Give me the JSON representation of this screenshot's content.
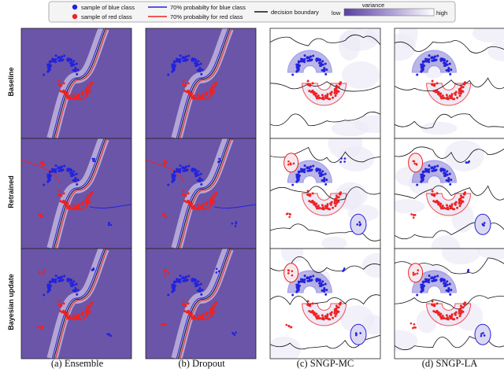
{
  "legend": {
    "blue_marker": "sample of blue class",
    "red_marker": "sample of red class",
    "blue_line": "70% probabilty for blue class",
    "red_line": "70% probabilty for red class",
    "boundary": "decision boundary",
    "variance_title": "variance",
    "variance_low": "low",
    "variance_high": "high"
  },
  "rows": [
    "Baseline",
    "Retrained",
    "Bayesian update"
  ],
  "columns": [
    "(a) Ensemble",
    "(b) Dropout",
    "(c) SNGP-MC",
    "(d) SNGP-LA"
  ],
  "colors": {
    "purple_background": "#6a55a8",
    "blue_class": "#2222dd",
    "red_class": "#ee2222",
    "boundary": "#111111"
  },
  "chart_data": {
    "type": "scatter",
    "title": "",
    "xlabel": "",
    "ylabel": "",
    "grid": false,
    "legend_placement": "top",
    "series": [
      {
        "name": "sample of blue class",
        "shape": "upper moon"
      },
      {
        "name": "sample of red class",
        "shape": "lower moon"
      }
    ],
    "panels": [
      {
        "row": "Baseline",
        "column": "(a) Ensemble",
        "background": "purple",
        "clusters": false
      },
      {
        "row": "Baseline",
        "column": "(b) Dropout",
        "background": "purple",
        "clusters": false
      },
      {
        "row": "Baseline",
        "column": "(c) SNGP-MC",
        "background": "white",
        "clusters": false
      },
      {
        "row": "Baseline",
        "column": "(d) SNGP-LA",
        "background": "white",
        "clusters": false
      },
      {
        "row": "Retrained",
        "column": "(a) Ensemble",
        "background": "purple",
        "clusters": true
      },
      {
        "row": "Retrained",
        "column": "(b) Dropout",
        "background": "purple",
        "clusters": true
      },
      {
        "row": "Retrained",
        "column": "(c) SNGP-MC",
        "background": "white",
        "clusters": true
      },
      {
        "row": "Retrained",
        "column": "(d) SNGP-LA",
        "background": "white",
        "clusters": true
      },
      {
        "row": "Bayesian update",
        "column": "(a) Ensemble",
        "background": "purple",
        "clusters": true
      },
      {
        "row": "Bayesian update",
        "column": "(b) Dropout",
        "background": "purple",
        "clusters": true
      },
      {
        "row": "Bayesian update",
        "column": "(c) SNGP-MC",
        "background": "white",
        "clusters": true
      },
      {
        "row": "Bayesian update",
        "column": "(d) SNGP-LA",
        "background": "white",
        "clusters": true
      }
    ]
  }
}
